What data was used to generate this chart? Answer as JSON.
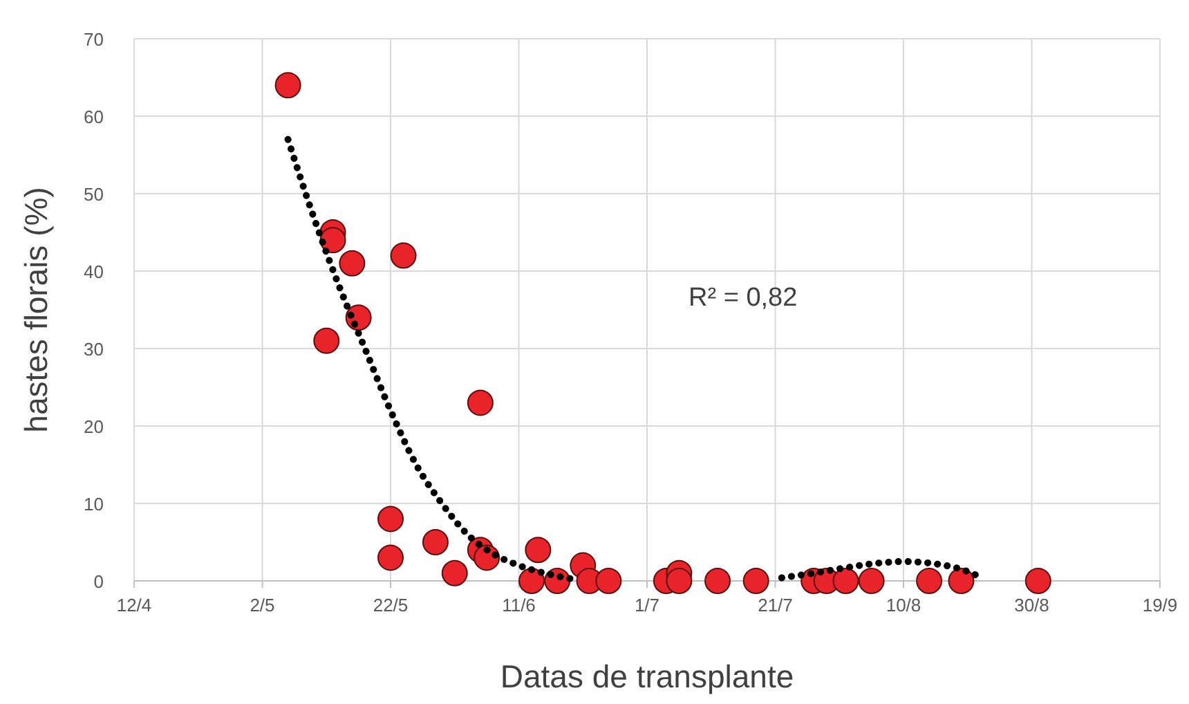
{
  "chart_data": {
    "type": "scatter",
    "xlabel": "Datas de transplante",
    "ylabel": "hastes florais (%)",
    "xlim": [
      "--04-12",
      "--09-19"
    ],
    "xticks": [
      {
        "value": "--04-12",
        "label": "12/4"
      },
      {
        "value": "--05-02",
        "label": "2/5"
      },
      {
        "value": "--05-22",
        "label": "22/5"
      },
      {
        "value": "--06-11",
        "label": "11/6"
      },
      {
        "value": "--07-01",
        "label": "1/7"
      },
      {
        "value": "--07-21",
        "label": "21/7"
      },
      {
        "value": "--08-10",
        "label": "10/8"
      },
      {
        "value": "--08-30",
        "label": "30/8"
      },
      {
        "value": "--09-19",
        "label": "19/9"
      }
    ],
    "ylim": [
      0,
      70
    ],
    "yticks": [
      0,
      10,
      20,
      30,
      40,
      50,
      60,
      70
    ],
    "grid": true,
    "annotations": [
      "R² = 0,82"
    ],
    "series": [
      {
        "color": "#e8232a",
        "marker": "circle",
        "x": [
          "--05-06",
          "--05-12",
          "--05-13",
          "--05-13",
          "--05-16",
          "--05-17",
          "--05-22",
          "--05-22",
          "--05-24",
          "--05-29",
          "--06-01",
          "--06-05",
          "--06-05",
          "--06-06",
          "--06-13",
          "--06-14",
          "--06-17",
          "--06-21",
          "--06-22",
          "--06-25",
          "--07-04",
          "--07-06",
          "--07-06",
          "--07-12",
          "--07-18",
          "--07-27",
          "--07-29",
          "--08-01",
          "--08-05",
          "--08-14",
          "--08-19",
          "--08-31"
        ],
        "values": [
          64,
          31,
          45,
          44,
          41,
          34,
          8,
          3,
          42,
          5,
          1,
          23,
          4,
          3,
          0,
          4,
          0,
          2,
          0,
          0,
          0,
          1,
          0,
          0,
          0,
          0,
          0,
          0,
          0,
          0,
          0,
          0
        ]
      },
      {
        "type": "line",
        "color": "#000000",
        "line_style": "dotted",
        "marker": "none",
        "x": [
          "--05-06",
          "--05-10",
          "--05-14",
          "--05-18",
          "--05-22",
          "--05-26",
          "--05-30",
          "--06-03",
          "--06-07",
          "--06-11",
          "--06-15",
          "--06-19",
          "--07-01",
          "--07-22",
          "--07-27",
          "--08-01",
          "--08-05",
          "--08-10",
          "--08-15",
          "--08-19",
          "--08-22"
        ],
        "values": [
          57,
          47,
          38,
          30,
          22,
          15,
          10,
          6,
          3.5,
          2,
          1,
          0.3,
          null,
          0.4,
          1,
          1.7,
          2.2,
          2.5,
          2.2,
          1.5,
          0.5
        ]
      }
    ]
  }
}
